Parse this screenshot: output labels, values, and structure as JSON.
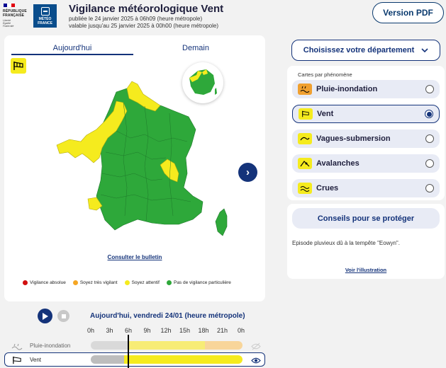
{
  "header": {
    "republic_lines": [
      "RÉPUBLIQUE",
      "FRANÇAISE"
    ],
    "motto": [
      "Liberté",
      "Égalité",
      "Fraternité"
    ],
    "meteo_lines": [
      "MÉTÉO",
      "FRANCE"
    ],
    "title": "Vigilance météorologique Vent",
    "published": "publiée le 24 janvier 2025 à 06h09 (heure métropole)",
    "valid_until": "valable jusqu'au 25 janvier 2025 à 00h00 (heure métropole)",
    "pdf_button": "Version PDF"
  },
  "map_card": {
    "tabs": [
      "Aujourd'hui",
      "Demain"
    ],
    "active_tab": "Aujourd'hui",
    "bulletin_link": "Consulter le bulletin",
    "next_arrow": "›",
    "legend": [
      {
        "label": "Vigilance absolue",
        "color": "#d10f0f"
      },
      {
        "label": "Soyez très vigilant",
        "color": "#f5a623"
      },
      {
        "label": "Soyez attentif",
        "color": "#f5eb1e"
      },
      {
        "label": "Pas de vigilance particulière",
        "color": "#2ea83a"
      }
    ],
    "colors": {
      "green": "#2ea83a",
      "yellow": "#f5eb1e"
    }
  },
  "right_panel": {
    "department_button": "Choisissez votre département",
    "phenomena_title": "Cartes par phénomène",
    "phenomena": [
      {
        "label": "Pluie-inondation",
        "icon": "rain-flood-icon",
        "selected": false
      },
      {
        "label": "Vent",
        "icon": "windsock-icon",
        "selected": true
      },
      {
        "label": "Vagues-submersion",
        "icon": "wave-icon",
        "selected": false
      },
      {
        "label": "Avalanches",
        "icon": "avalanche-icon",
        "selected": false
      },
      {
        "label": "Crues",
        "icon": "flood-icon",
        "selected": false
      }
    ],
    "advice_button": "Conseils pour se protéger",
    "episode_text": "Episode pluvieux dû à la tempête \"Eowyn\".",
    "illustration_link": "Voir l'illustration"
  },
  "timeline": {
    "date_label": "Aujourd'hui, vendredi 24/01 (heure métropole)",
    "hours": [
      "0h",
      "3h",
      "6h",
      "9h",
      "12h",
      "15h",
      "18h",
      "21h",
      "0h"
    ],
    "rows": [
      {
        "label": "Pluie-inondation",
        "segments": [
          "#d9d9d9",
          "#f7ec76",
          "#f8d59a"
        ]
      },
      {
        "label": "Vent",
        "segments": [
          "#bdbdbd",
          "#f5eb1e"
        ]
      }
    ]
  }
}
